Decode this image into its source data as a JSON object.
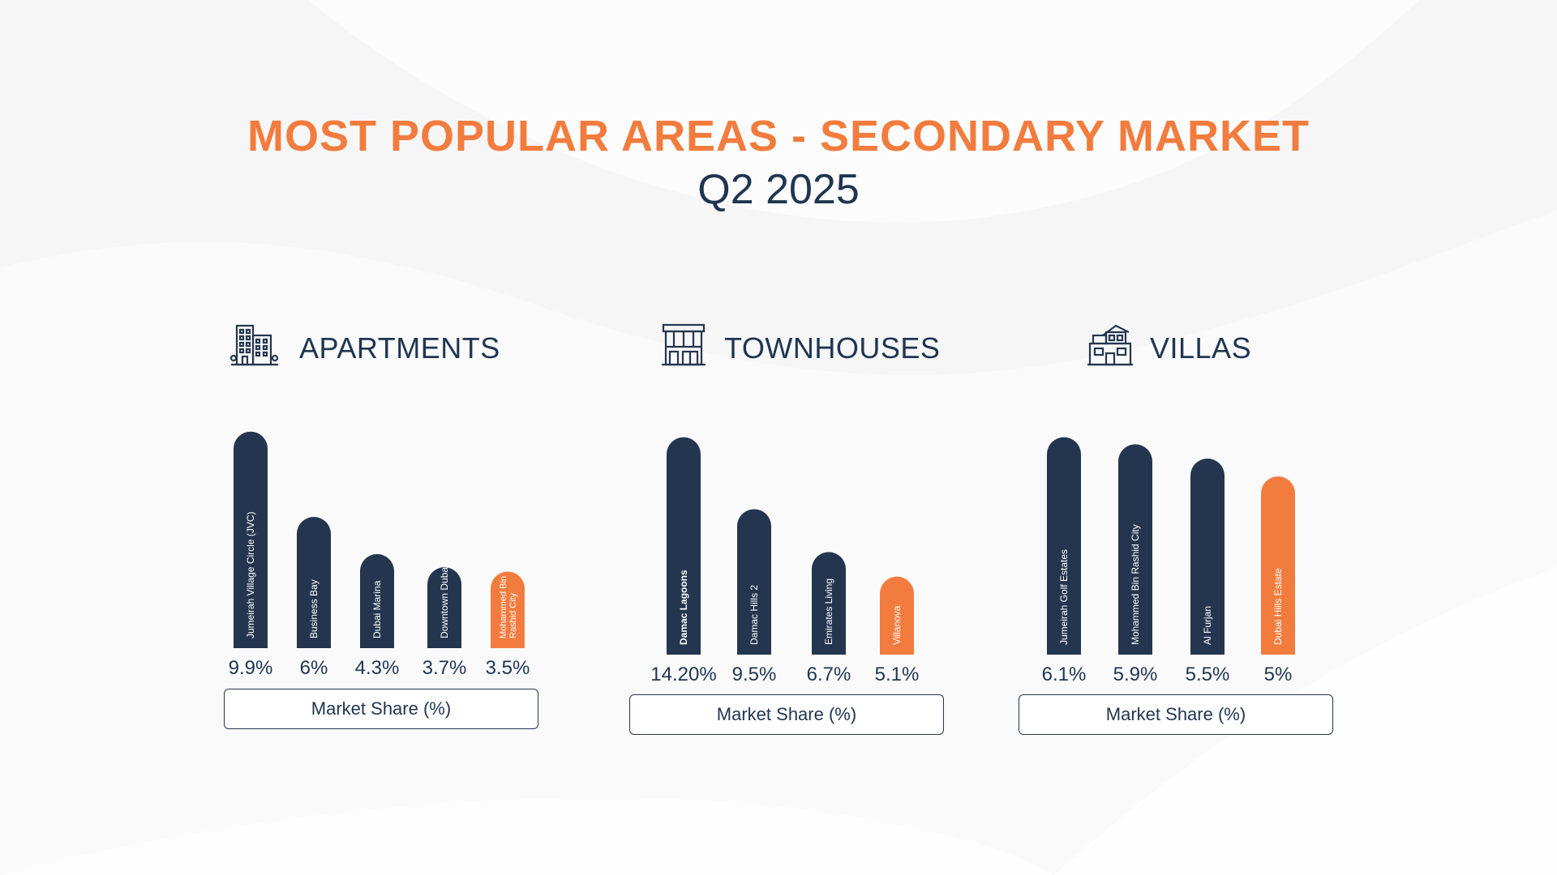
{
  "title": "MOST POPULAR AREAS - SECONDARY MARKET",
  "subtitle": "Q2 2025",
  "colors": {
    "navy": "#24364f",
    "orange": "#f27c3e",
    "text": "#1f3550"
  },
  "sections": [
    {
      "id": "apartments",
      "title": "APARTMENTS",
      "icon": "apartment-building-icon",
      "legend_label": "Market Share (%)"
    },
    {
      "id": "townhouses",
      "title": "TOWNHOUSES",
      "icon": "townhouse-icon",
      "legend_label": "Market Share (%)"
    },
    {
      "id": "villas",
      "title": "VILLAS",
      "icon": "villa-icon",
      "legend_label": "Market Share (%)"
    }
  ],
  "chart_data": [
    {
      "type": "bar",
      "title": "APARTMENTS",
      "xlabel": "Market Share (%)",
      "categories": [
        [
          "Jumeirah Village Circle (JVC)"
        ],
        [
          "Business Bay"
        ],
        [
          "Dubai Marina"
        ],
        [
          "Downtown Dubai"
        ],
        [
          "Mohammed Bin",
          "Rashid City"
        ]
      ],
      "values": [
        9.9,
        6,
        4.3,
        3.7,
        3.5
      ],
      "value_labels": [
        "9.9%",
        "6%",
        "4.3%",
        "3.7%",
        "3.5%"
      ],
      "highlight_index": 4
    },
    {
      "type": "bar",
      "title": "TOWNHOUSES",
      "xlabel": "Market Share (%)",
      "categories": [
        [
          "Damac Lagoons"
        ],
        [
          "Damac Hills 2"
        ],
        [
          "Emirates Living"
        ],
        [
          "Villanova"
        ]
      ],
      "values": [
        14.2,
        9.5,
        6.7,
        5.1
      ],
      "value_labels": [
        "14.20%",
        "9.5%",
        "6.7%",
        "5.1%"
      ],
      "highlight_index": 3
    },
    {
      "type": "bar",
      "title": "VILLAS",
      "xlabel": "Market Share (%)",
      "categories": [
        [
          "Jumeirah Golf Estates"
        ],
        [
          "Mohammed Bin Rashid City"
        ],
        [
          "Al Furjan"
        ],
        [
          "Dubai Hills Estate"
        ]
      ],
      "values": [
        6.1,
        5.9,
        5.5,
        5
      ],
      "value_labels": [
        "6.1%",
        "5.9%",
        "5.5%",
        "5%"
      ],
      "highlight_index": 3
    }
  ]
}
